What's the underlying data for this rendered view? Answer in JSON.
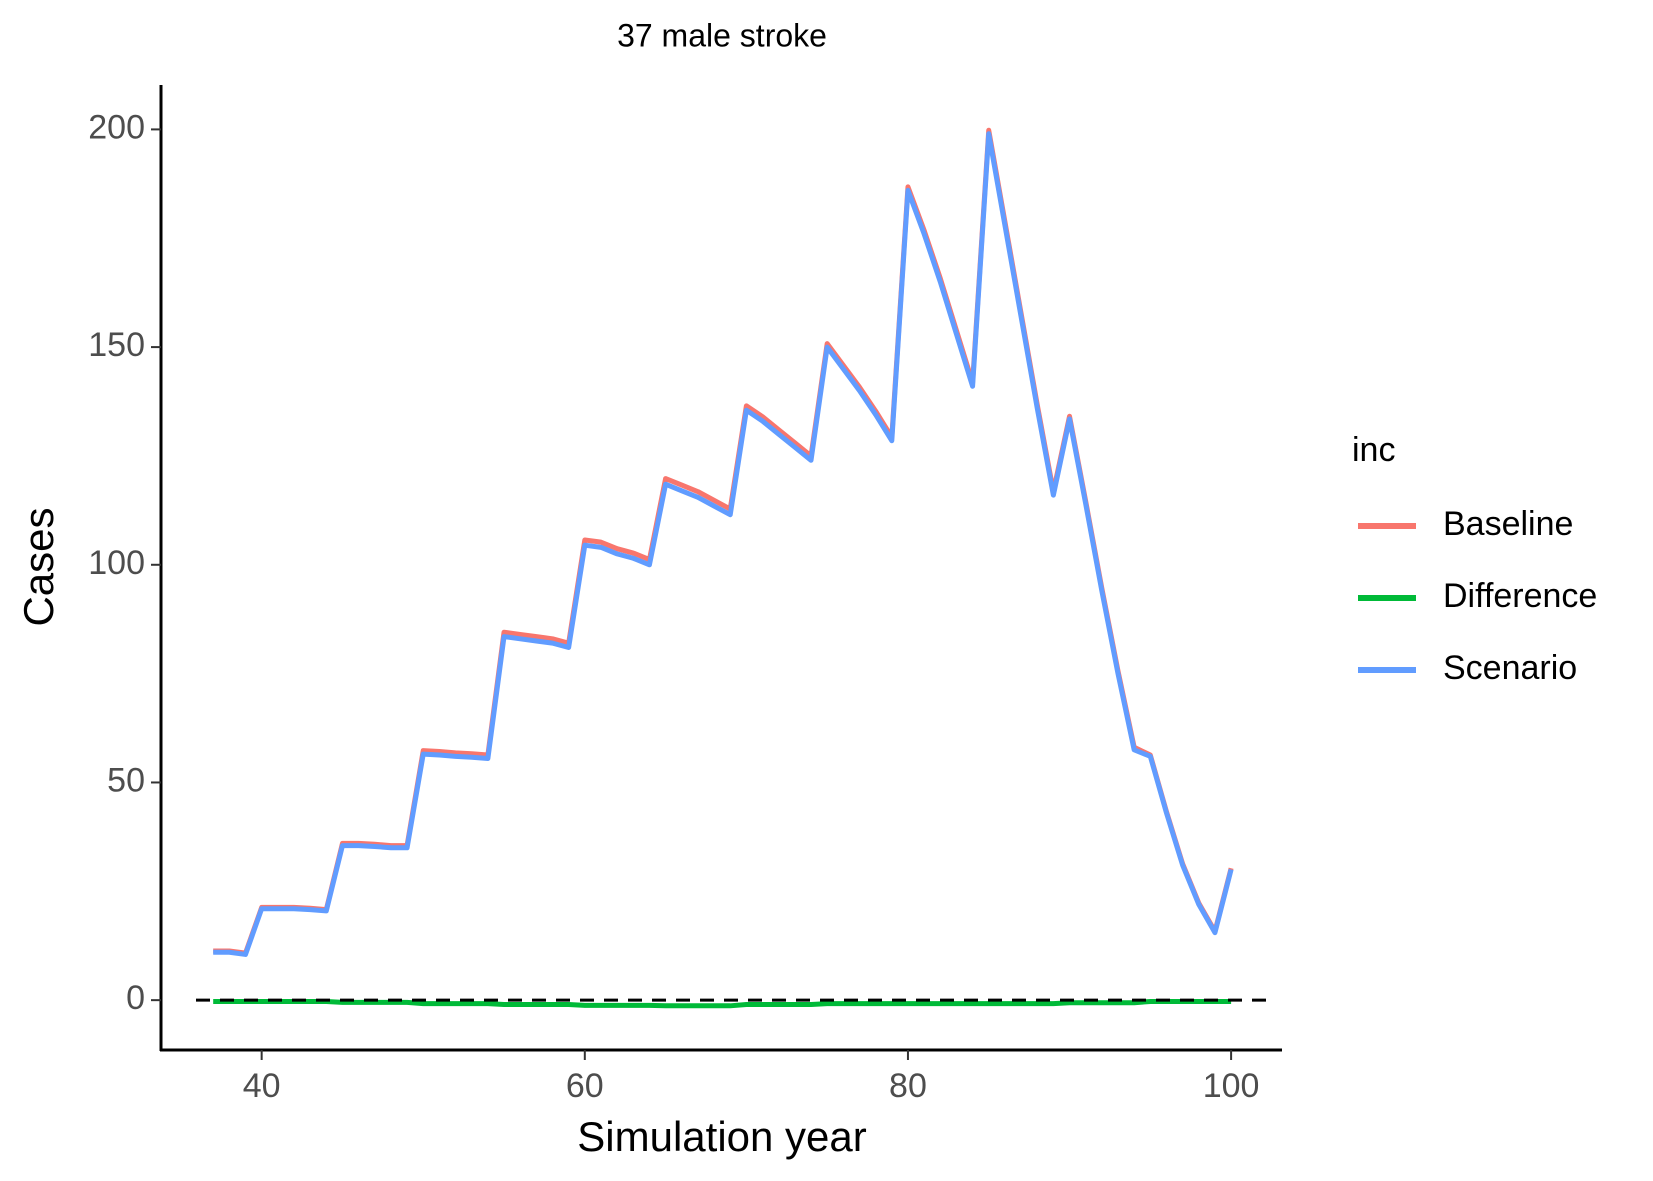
{
  "chart_data": {
    "type": "line",
    "title": "37 male stroke",
    "xlabel": "Simulation year",
    "ylabel": "Cases",
    "legend_title": "inc",
    "legend": "right",
    "grid": false,
    "xlim": [
      33.77,
      103.15
    ],
    "ylim": [
      -11.45,
      210.2
    ],
    "xticks": [
      40,
      60,
      80,
      100
    ],
    "yticks": [
      0,
      50,
      100,
      150,
      200
    ],
    "hline": 0,
    "x": [
      37,
      38,
      39,
      40,
      41,
      42,
      43,
      44,
      45,
      46,
      47,
      48,
      49,
      50,
      51,
      52,
      53,
      54,
      55,
      56,
      57,
      58,
      59,
      60,
      61,
      62,
      63,
      64,
      65,
      66,
      67,
      68,
      69,
      70,
      71,
      72,
      73,
      74,
      75,
      76,
      77,
      78,
      79,
      80,
      81,
      82,
      83,
      84,
      85,
      86,
      87,
      88,
      89,
      90,
      91,
      92,
      93,
      94,
      95,
      96,
      97,
      98,
      99,
      100
    ],
    "series": [
      {
        "name": "Baseline",
        "color": "#f8766d",
        "values": [
          11.3,
          11.3,
          10.8,
          21.3,
          21.3,
          21.3,
          21.1,
          20.8,
          36,
          36,
          35.8,
          35.5,
          35.5,
          57.3,
          57.1,
          56.8,
          56.6,
          56.3,
          84.5,
          84,
          83.5,
          83,
          82,
          105.7,
          105.2,
          103.7,
          102.7,
          101.2,
          119.8,
          118.3,
          116.8,
          114.8,
          112.8,
          136.5,
          134,
          131,
          128,
          125,
          150.8,
          145.8,
          140.8,
          135.3,
          129.3,
          186.8,
          176.8,
          165.8,
          153.8,
          141.8,
          199.8,
          178.8,
          157.8,
          136.8,
          116.8,
          134.1,
          114.6,
          94.6,
          75.6,
          58.1,
          56.3,
          43.3,
          31.3,
          22.3,
          15.8,
          30.3
        ]
      },
      {
        "name": "Difference",
        "color": "#00ba38",
        "values": [
          -0.3,
          -0.3,
          -0.3,
          -0.3,
          -0.3,
          -0.3,
          -0.3,
          -0.3,
          -0.5,
          -0.5,
          -0.5,
          -0.5,
          -0.5,
          -0.8,
          -0.8,
          -0.8,
          -0.8,
          -0.8,
          -1,
          -1,
          -1,
          -1,
          -1,
          -1.2,
          -1.2,
          -1.2,
          -1.2,
          -1.2,
          -1.3,
          -1.3,
          -1.3,
          -1.3,
          -1.3,
          -1,
          -1,
          -1,
          -1,
          -1,
          -0.8,
          -0.8,
          -0.8,
          -0.8,
          -0.8,
          -0.8,
          -0.8,
          -0.8,
          -0.8,
          -0.8,
          -0.8,
          -0.8,
          -0.8,
          -0.8,
          -0.8,
          -0.6,
          -0.6,
          -0.6,
          -0.6,
          -0.6,
          -0.3,
          -0.3,
          -0.3,
          -0.3,
          -0.3,
          -0.3
        ]
      },
      {
        "name": "Scenario",
        "color": "#619cff",
        "values": [
          11,
          11,
          10.5,
          21,
          21,
          21,
          20.8,
          20.5,
          35.5,
          35.5,
          35.3,
          35,
          35,
          56.5,
          56.3,
          56,
          55.8,
          55.5,
          83.5,
          83,
          82.5,
          82,
          81,
          104.5,
          104,
          102.5,
          101.5,
          100,
          118.5,
          117,
          115.5,
          113.5,
          111.5,
          135.5,
          133,
          130,
          127,
          124,
          150,
          145,
          140,
          134.5,
          128.5,
          186,
          176,
          165,
          153,
          141,
          199,
          178,
          157,
          136,
          116,
          133.5,
          114,
          94,
          75,
          57.5,
          56,
          43,
          31,
          22,
          15.5,
          30
        ]
      }
    ]
  }
}
